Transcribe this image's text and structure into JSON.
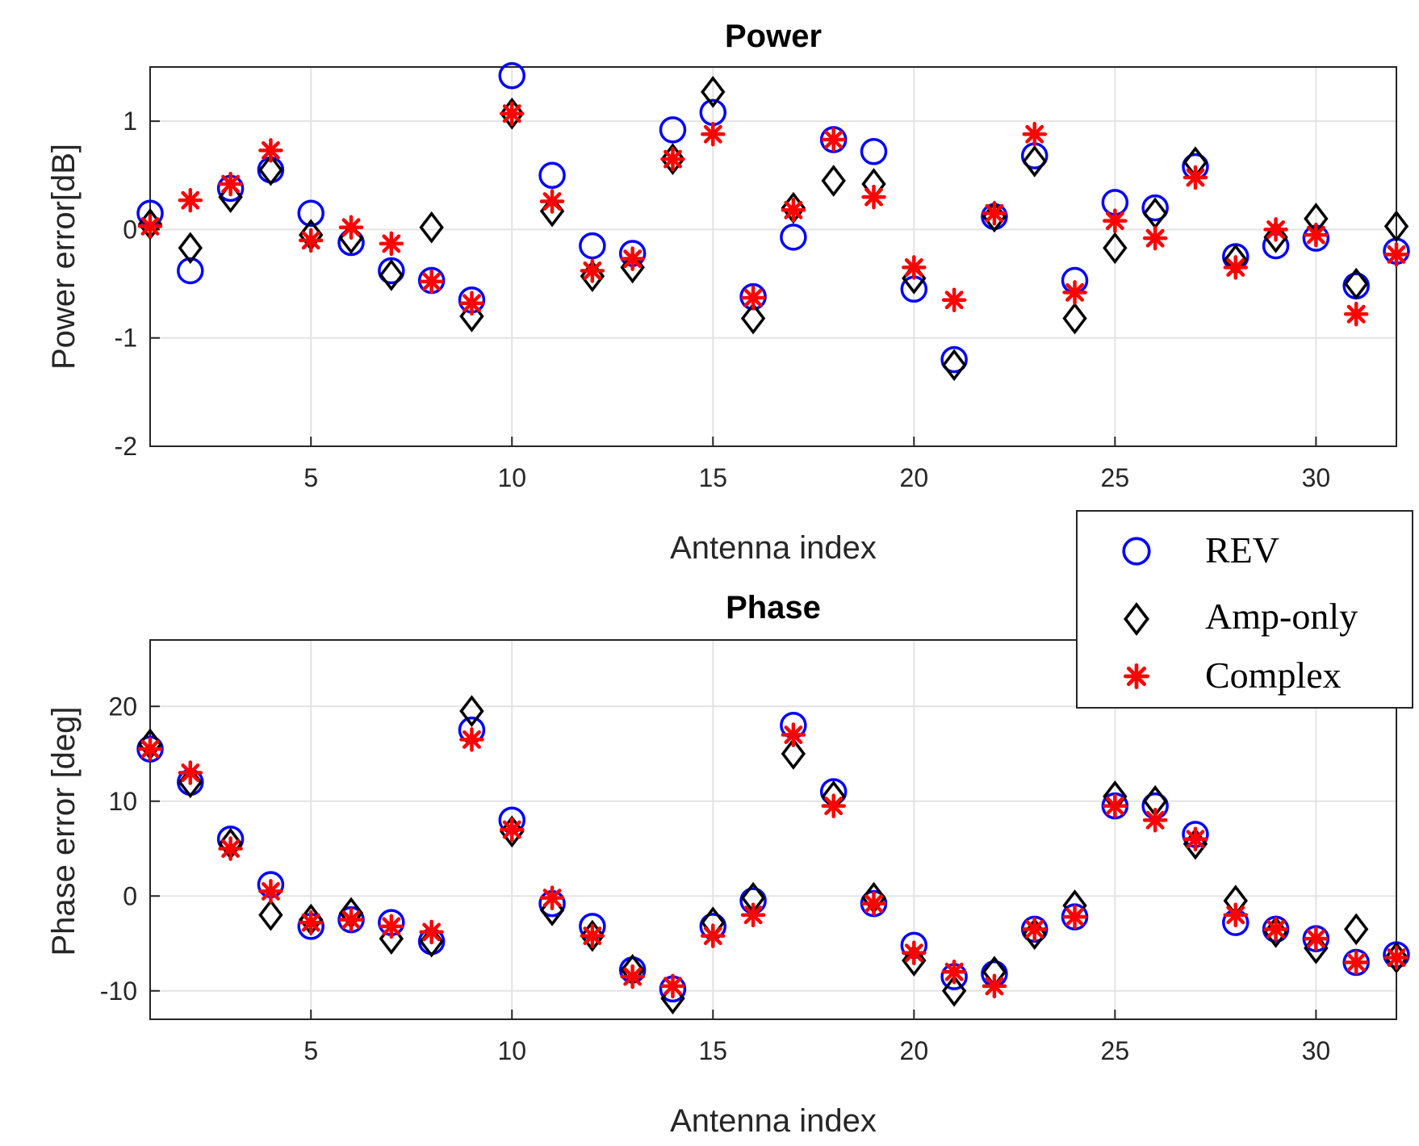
{
  "chart_data": [
    {
      "type": "scatter",
      "title": "Power",
      "xlabel": "Antenna index",
      "ylabel": "Power error[dB]",
      "xlim": [
        1,
        32
      ],
      "ylim": [
        -2,
        1.5
      ],
      "xticks": [
        5,
        10,
        15,
        20,
        25,
        30
      ],
      "yticks": [
        -2,
        -1,
        0,
        1
      ],
      "grid": true,
      "x": [
        1,
        2,
        3,
        4,
        5,
        6,
        7,
        8,
        9,
        10,
        11,
        12,
        13,
        14,
        15,
        16,
        17,
        18,
        19,
        20,
        21,
        22,
        23,
        24,
        25,
        26,
        27,
        28,
        29,
        30,
        31,
        32
      ],
      "series": [
        {
          "name": "REV",
          "marker": "circle",
          "color": "#0000ff",
          "values": [
            0.15,
            -0.38,
            0.38,
            0.55,
            0.15,
            -0.12,
            -0.38,
            -0.47,
            -0.65,
            1.42,
            0.5,
            -0.15,
            -0.22,
            0.92,
            1.08,
            -0.62,
            -0.07,
            0.83,
            0.72,
            -0.55,
            -1.2,
            0.12,
            0.68,
            -0.47,
            0.25,
            0.2,
            0.58,
            -0.25,
            -0.15,
            -0.08,
            -0.52,
            -0.2
          ]
        },
        {
          "name": "Amp-only",
          "marker": "diamond",
          "color": "#000000",
          "values": [
            0.05,
            -0.17,
            0.3,
            0.55,
            -0.05,
            -0.08,
            -0.42,
            0.02,
            -0.8,
            1.07,
            0.17,
            -0.43,
            -0.35,
            0.65,
            1.27,
            -0.82,
            0.2,
            0.45,
            0.42,
            -0.45,
            -1.25,
            0.12,
            0.63,
            -0.82,
            -0.17,
            0.15,
            0.62,
            -0.28,
            -0.07,
            0.1,
            -0.5,
            0.03
          ]
        },
        {
          "name": "Complex",
          "marker": "asterisk",
          "color": "#ff0000",
          "values": [
            0.03,
            0.27,
            0.42,
            0.73,
            -0.1,
            0.02,
            -0.13,
            -0.48,
            -0.68,
            1.07,
            0.26,
            -0.38,
            -0.27,
            0.65,
            0.88,
            -0.63,
            0.18,
            0.83,
            0.3,
            -0.35,
            -0.65,
            0.15,
            0.88,
            -0.58,
            0.08,
            -0.08,
            0.48,
            -0.35,
            0.0,
            -0.05,
            -0.78,
            -0.23
          ]
        }
      ]
    },
    {
      "type": "scatter",
      "title": "Phase",
      "xlabel": "Antenna index",
      "ylabel": "Phase error [deg]",
      "xlim": [
        1,
        32
      ],
      "ylim": [
        -13,
        27
      ],
      "xticks": [
        5,
        10,
        15,
        20,
        25,
        30
      ],
      "yticks": [
        -10,
        0,
        10,
        20
      ],
      "grid": true,
      "x": [
        1,
        2,
        3,
        4,
        5,
        6,
        7,
        8,
        9,
        10,
        11,
        12,
        13,
        14,
        15,
        16,
        17,
        18,
        19,
        20,
        21,
        22,
        23,
        24,
        25,
        26,
        27,
        28,
        29,
        30,
        31,
        32
      ],
      "series": [
        {
          "name": "REV",
          "marker": "circle",
          "color": "#0000ff",
          "values": [
            15.5,
            12.0,
            6.0,
            1.2,
            -3.2,
            -2.5,
            -2.8,
            -4.8,
            17.5,
            8.0,
            -0.8,
            -3.2,
            -7.8,
            -9.8,
            -3.2,
            -0.5,
            18.0,
            11.0,
            -0.8,
            -5.2,
            -8.5,
            -8.2,
            -3.5,
            -2.2,
            9.5,
            9.5,
            6.5,
            -2.8,
            -3.5,
            -4.5,
            -7.0,
            -6.2
          ]
        },
        {
          "name": "Amp-only",
          "marker": "diamond",
          "color": "#000000",
          "values": [
            16.0,
            12.0,
            5.5,
            -2.0,
            -2.5,
            -1.8,
            -4.5,
            -4.8,
            19.5,
            6.8,
            -1.5,
            -4.2,
            -7.8,
            -10.8,
            -2.8,
            -0.2,
            15.0,
            10.5,
            -0.2,
            -6.8,
            -10.0,
            -8.0,
            -4.0,
            -1.0,
            10.5,
            10.0,
            5.5,
            -0.5,
            -3.8,
            -5.5,
            -3.5,
            -6.5
          ]
        },
        {
          "name": "Complex",
          "marker": "asterisk",
          "color": "#ff0000",
          "values": [
            15.5,
            13.0,
            5.0,
            0.5,
            -2.8,
            -2.5,
            -3.2,
            -3.8,
            16.5,
            7.0,
            -0.2,
            -4.2,
            -8.5,
            -9.5,
            -4.2,
            -2.0,
            17.0,
            9.5,
            -0.8,
            -6.0,
            -8.0,
            -9.5,
            -3.5,
            -2.2,
            9.5,
            8.0,
            6.0,
            -2.0,
            -3.5,
            -4.5,
            -7.0,
            -6.5
          ]
        }
      ]
    }
  ],
  "legend": {
    "entries": [
      {
        "label": "REV",
        "marker": "circle",
        "color": "#0000ff"
      },
      {
        "label": "Amp-only",
        "marker": "diamond",
        "color": "#000000"
      },
      {
        "label": "Complex",
        "marker": "asterisk",
        "color": "#ff0000"
      }
    ]
  }
}
